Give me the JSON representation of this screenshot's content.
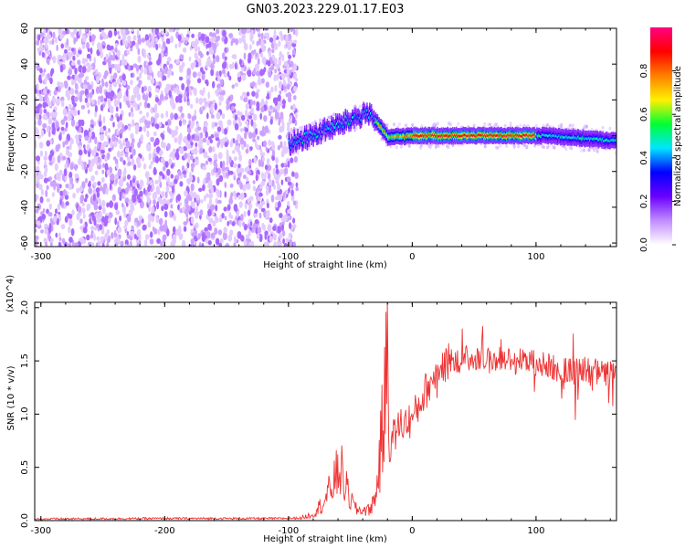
{
  "title": "GN03.2023.229.01.17.E03",
  "chart_data": [
    {
      "type": "heatmap",
      "title": "GN03.2023.229.01.17.E03",
      "xlabel": "Height of straight line (km)",
      "ylabel": "Frequency (Hz)",
      "xlim": [
        -305,
        165
      ],
      "ylim": [
        -62,
        60
      ],
      "xticks": [
        -300,
        -200,
        -100,
        0,
        100
      ],
      "yticks": [
        -60,
        -40,
        -20,
        0,
        20,
        40,
        60
      ],
      "colorbar": {
        "label": "Normalized spectral amplitude",
        "range": [
          0,
          1
        ],
        "ticks": [
          "0.0",
          "0.2",
          "0.4",
          "0.6",
          "0.8"
        ],
        "colors": [
          "#ffffff",
          "#c18cff",
          "#6a00ff",
          "#0000ff",
          "#00e5ff",
          "#00ff33",
          "#fff000",
          "#ff7f00",
          "#ff0000",
          "#ff0080"
        ]
      },
      "regions": [
        {
          "name": "broadband noise",
          "x": [
            -305,
            -93
          ],
          "freq_hz": [
            -62,
            60
          ],
          "amplitude": [
            0.05,
            0.15
          ]
        },
        {
          "name": "narrow tone",
          "x": [
            -100,
            165
          ],
          "center_freq_hz": [
            -5,
            13,
            -1,
            0,
            0,
            0,
            -3
          ],
          "center_at_x": [
            -100,
            -35,
            -20,
            0,
            50,
            110,
            165
          ],
          "peak_amplitude": 0.95
        }
      ]
    },
    {
      "type": "line",
      "xlabel": "Height of straight line (km)",
      "ylabel": "SNR (10 * v/v)",
      "y_multiplier": "(x10^4)",
      "xlim": [
        -305,
        165
      ],
      "ylim": [
        0,
        2.05
      ],
      "xticks": [
        -300,
        -200,
        -100,
        0,
        100
      ],
      "yticks": [
        0.0,
        0.5,
        1.0,
        1.5,
        2.0
      ],
      "series": [
        {
          "color": "#ee3333",
          "x": [
            -305,
            -200,
            -110,
            -90,
            -80,
            -70,
            -62,
            -58,
            -55,
            -50,
            -45,
            -40,
            -35,
            -30,
            -26,
            -23,
            -21,
            -20,
            -19,
            -17,
            -10,
            0,
            10,
            20,
            30,
            40,
            50,
            60,
            70,
            80,
            90,
            100,
            110,
            120,
            130,
            140,
            150,
            160,
            165
          ],
          "y": [
            0.015,
            0.02,
            0.02,
            0.025,
            0.06,
            0.2,
            0.4,
            0.5,
            0.35,
            0.2,
            0.1,
            0.1,
            0.1,
            0.2,
            0.6,
            1.0,
            1.3,
            2.02,
            0.7,
            0.75,
            0.9,
            0.95,
            1.2,
            1.4,
            1.5,
            1.52,
            1.53,
            1.5,
            1.52,
            1.5,
            1.5,
            1.48,
            1.45,
            1.42,
            1.4,
            1.4,
            1.38,
            1.38,
            1.4
          ]
        }
      ]
    }
  ]
}
